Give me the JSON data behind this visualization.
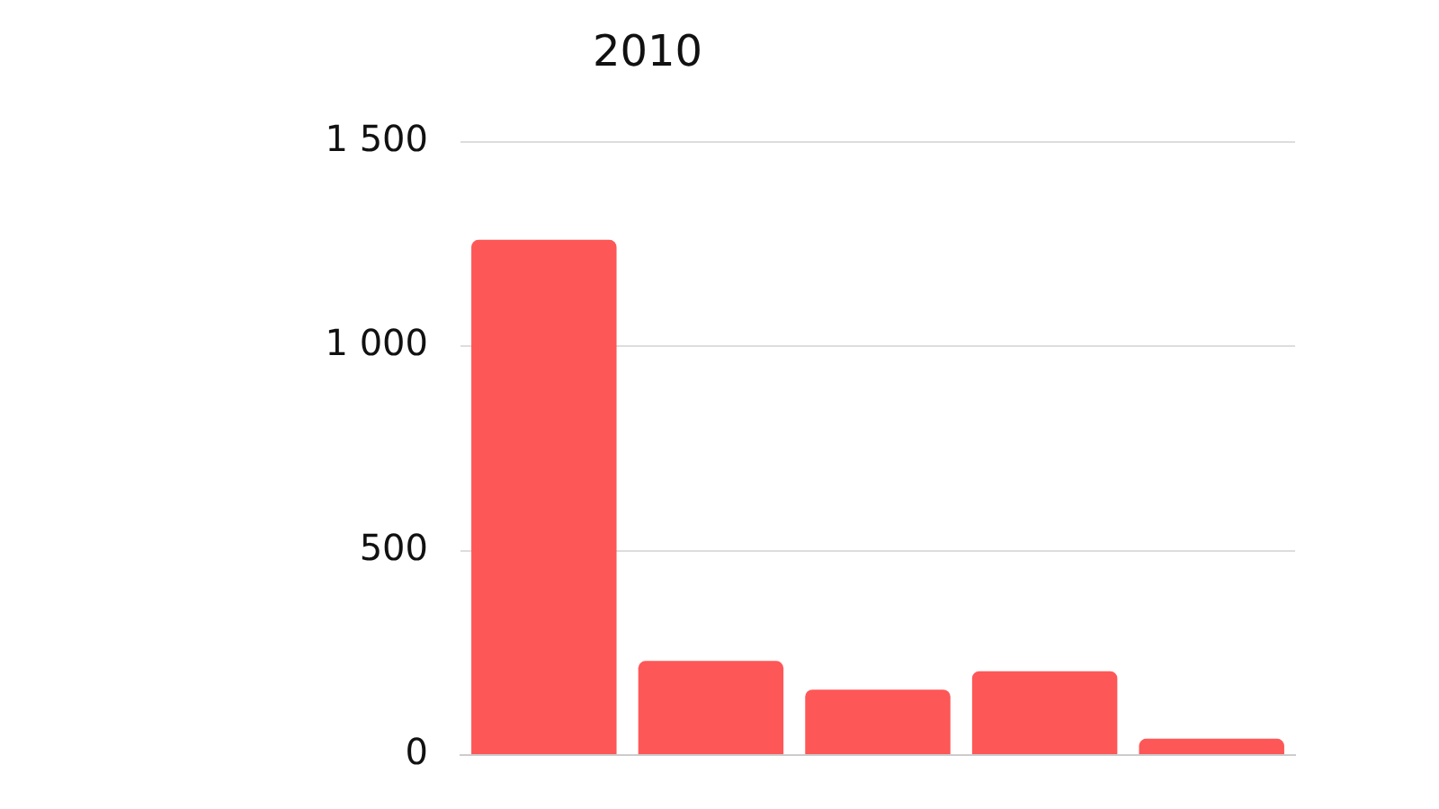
{
  "chart_data": {
    "type": "bar",
    "title": "2010",
    "categories": [
      null,
      null,
      null,
      null,
      null
    ],
    "values": [
      1260,
      230,
      160,
      205,
      40
    ],
    "color": "#fe5757",
    "ylim": [
      0,
      1500
    ],
    "yticks": [
      0,
      500,
      {
        "value": 1000,
        "label": "1 000"
      },
      {
        "value": 1500,
        "label": "1 500"
      }
    ],
    "grid": "y",
    "tick_labels": "y"
  }
}
